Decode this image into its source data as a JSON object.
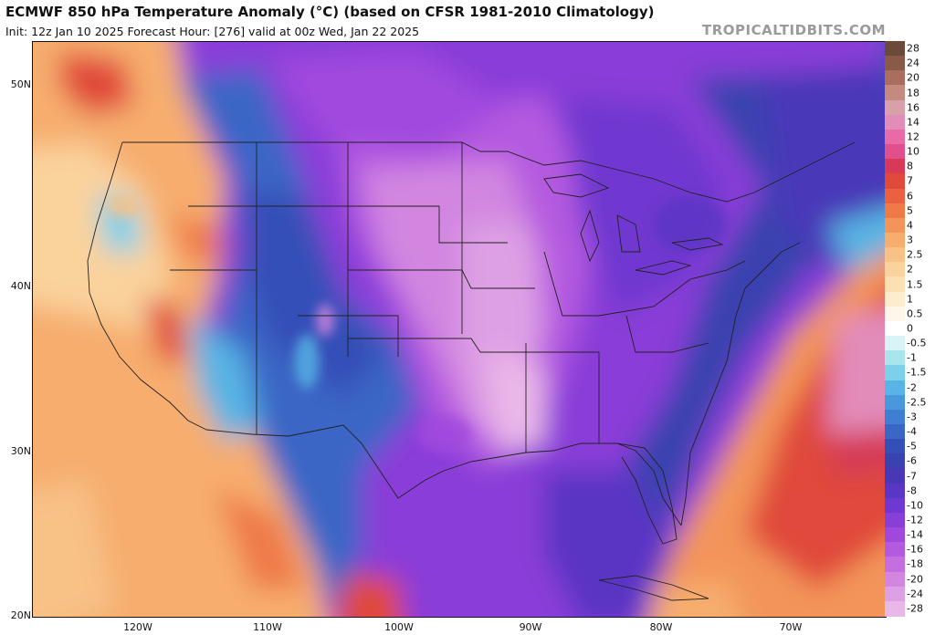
{
  "header": {
    "title": "ECMWF 850 hPa Temperature Anomaly (°C) (based on CFSR 1981-2010 Climatology)",
    "subtitle": "Init: 12z Jan 10 2025   Forecast Hour: [276]   valid at 00z Wed, Jan 22 2025",
    "credit": "TROPICALTIDBITS.COM"
  },
  "map": {
    "latitude_labels": [
      "50N",
      "40N",
      "30N",
      "20N"
    ],
    "longitude_labels": [
      "120W",
      "110W",
      "100W",
      "90W",
      "80W",
      "70W"
    ]
  },
  "colorbar": {
    "levels": [
      {
        "label": "28",
        "color": "#6b4a3a"
      },
      {
        "label": "24",
        "color": "#8a5a48"
      },
      {
        "label": "20",
        "color": "#a96e5e"
      },
      {
        "label": "18",
        "color": "#c48a80"
      },
      {
        "label": "16",
        "color": "#d8a0a8"
      },
      {
        "label": "14",
        "color": "#e28cba"
      },
      {
        "label": "12",
        "color": "#e86aa6"
      },
      {
        "label": "10",
        "color": "#e0508c"
      },
      {
        "label": "8",
        "color": "#d63a56"
      },
      {
        "label": "7",
        "color": "#e04a3a"
      },
      {
        "label": "6",
        "color": "#ea6040"
      },
      {
        "label": "5",
        "color": "#ef7a48"
      },
      {
        "label": "4",
        "color": "#f3955a"
      },
      {
        "label": "3",
        "color": "#f6ad6e"
      },
      {
        "label": "2.5",
        "color": "#f8c186"
      },
      {
        "label": "2",
        "color": "#fad29c"
      },
      {
        "label": "1.5",
        "color": "#fbe0b4"
      },
      {
        "label": "1",
        "color": "#fdecce"
      },
      {
        "label": "0.5",
        "color": "#fef6e8"
      },
      {
        "label": "0",
        "color": "#ffffff"
      },
      {
        "label": "-0.5",
        "color": "#d8f4f6"
      },
      {
        "label": "-1",
        "color": "#a8e6ee"
      },
      {
        "label": "-1.5",
        "color": "#7cd0ea"
      },
      {
        "label": "-2",
        "color": "#58b4e4"
      },
      {
        "label": "-2.5",
        "color": "#4a98dc"
      },
      {
        "label": "-3",
        "color": "#3f7ed2"
      },
      {
        "label": "-4",
        "color": "#3a66c6"
      },
      {
        "label": "-5",
        "color": "#3450b8"
      },
      {
        "label": "-6",
        "color": "#3a42b0"
      },
      {
        "label": "-7",
        "color": "#4838b8"
      },
      {
        "label": "-8",
        "color": "#5a36c4"
      },
      {
        "label": "-10",
        "color": "#7038d0"
      },
      {
        "label": "-12",
        "color": "#8a3ed8"
      },
      {
        "label": "-14",
        "color": "#a048de"
      },
      {
        "label": "-16",
        "color": "#b45ae0"
      },
      {
        "label": "-18",
        "color": "#c46ee0"
      },
      {
        "label": "-20",
        "color": "#d286e0"
      },
      {
        "label": "-24",
        "color": "#dea0e4"
      },
      {
        "label": "-28",
        "color": "#eab8e8"
      }
    ]
  }
}
